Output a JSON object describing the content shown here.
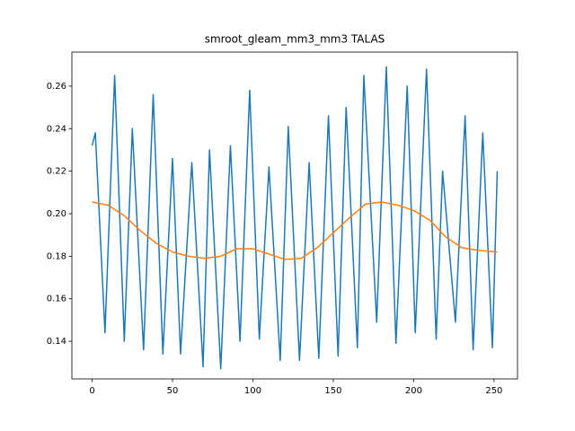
{
  "chart_data": {
    "type": "line",
    "title": "smroot_gleam_mm3_mm3 TALAS",
    "xlim": [
      -12.6,
      264.6
    ],
    "xticks": [
      0,
      50,
      100,
      150,
      200,
      250
    ],
    "ylim": [
      0.1223,
      0.276
    ],
    "yticks": [
      0.14,
      0.16,
      0.18,
      {
        "value": 0.2,
        "label": "0.20"
      },
      0.22,
      0.24,
      0.26
    ],
    "series": [
      {
        "color": "#1f77b4",
        "x": [
          0,
          2,
          8,
          14,
          20,
          25,
          32,
          38,
          44,
          50,
          55,
          62,
          69,
          73,
          80,
          86,
          92,
          98,
          104,
          110,
          117,
          122,
          129,
          135,
          141,
          147,
          153,
          158,
          165,
          169,
          177,
          183,
          189,
          196,
          201,
          208,
          214,
          218,
          226,
          232,
          237,
          243,
          249,
          252
        ],
        "values": [
          0.232,
          0.238,
          0.144,
          0.265,
          0.14,
          0.24,
          0.136,
          0.256,
          0.134,
          0.226,
          0.134,
          0.224,
          0.128,
          0.23,
          0.127,
          0.232,
          0.14,
          0.258,
          0.141,
          0.222,
          0.131,
          0.241,
          0.131,
          0.224,
          0.132,
          0.246,
          0.133,
          0.25,
          0.137,
          0.265,
          0.149,
          0.269,
          0.139,
          0.26,
          0.144,
          0.268,
          0.141,
          0.22,
          0.149,
          0.246,
          0.136,
          0.238,
          0.137,
          0.22
        ]
      },
      {
        "color": "#ff7f0e",
        "x": [
          0,
          10,
          20,
          30,
          40,
          50,
          60,
          70,
          80,
          90,
          100,
          110,
          120,
          130,
          140,
          150,
          160,
          170,
          180,
          190,
          200,
          210,
          220,
          230,
          240,
          252
        ],
        "values": [
          0.2055,
          0.204,
          0.199,
          0.192,
          0.186,
          0.182,
          0.18,
          0.179,
          0.18,
          0.1835,
          0.1835,
          0.181,
          0.1785,
          0.179,
          0.184,
          0.191,
          0.198,
          0.2045,
          0.2055,
          0.204,
          0.2015,
          0.197,
          0.189,
          0.184,
          0.1828,
          0.182
        ]
      }
    ]
  }
}
